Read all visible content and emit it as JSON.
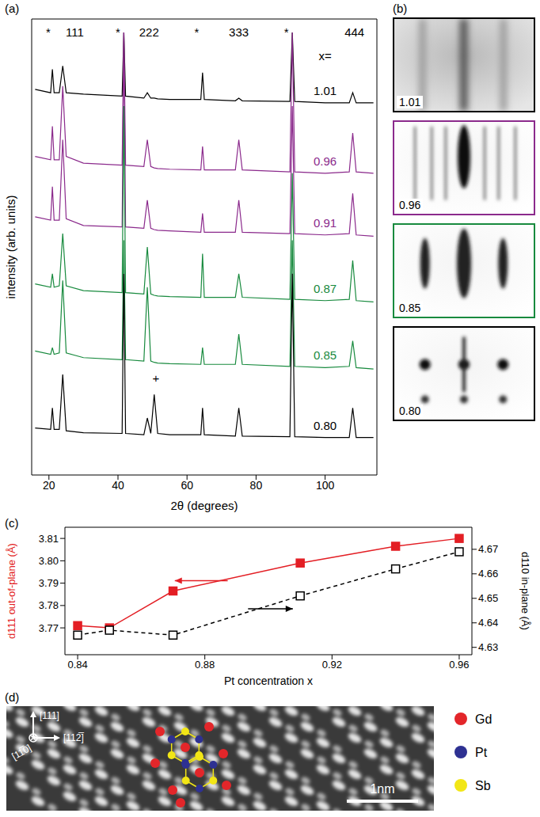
{
  "chart_data": [
    {
      "type": "line",
      "title": "(a)",
      "x_label": "2θ (degrees)",
      "y_label": "intensity (arb. units)",
      "x": [
        16,
        20.5,
        21,
        21.5,
        23,
        24,
        25,
        30,
        41.2,
        41.7,
        42.2,
        47.5,
        48.5,
        49.5,
        50.5,
        51.5,
        55,
        64,
        64.5,
        65,
        74,
        75,
        76,
        89.8,
        90.5,
        91.2,
        100,
        107,
        108,
        109,
        114
      ],
      "series": [
        {
          "name": "1.01",
          "color": "#000000",
          "values": [
            5.75,
            5.7,
            6.05,
            5.7,
            5.7,
            6.1,
            5.7,
            5.68,
            5.65,
            6.6,
            5.65,
            5.62,
            5.7,
            5.62,
            5.62,
            5.61,
            5.6,
            5.6,
            6.0,
            5.6,
            5.58,
            5.62,
            5.58,
            5.57,
            6.6,
            5.57,
            5.55,
            5.55,
            5.7,
            5.55,
            5.55
          ]
        },
        {
          "name": "0.96",
          "color": "#8b2a8c",
          "values": [
            4.75,
            4.7,
            5.2,
            4.7,
            4.7,
            5.8,
            4.75,
            4.65,
            4.62,
            6.6,
            4.62,
            4.6,
            5.0,
            4.6,
            4.58,
            4.57,
            4.56,
            4.55,
            4.9,
            4.55,
            4.55,
            5.0,
            4.55,
            4.52,
            6.6,
            4.52,
            4.5,
            4.52,
            5.1,
            4.52,
            4.5
          ]
        },
        {
          "name": "0.91",
          "color": "#8b2a8c",
          "values": [
            3.85,
            3.8,
            4.3,
            3.8,
            3.8,
            5.0,
            3.82,
            3.72,
            3.7,
            6.6,
            3.7,
            3.68,
            4.1,
            3.68,
            3.66,
            3.65,
            3.64,
            3.62,
            3.9,
            3.62,
            3.62,
            4.1,
            3.62,
            3.6,
            5.5,
            3.6,
            3.58,
            3.6,
            4.2,
            3.58,
            3.56
          ]
        },
        {
          "name": "0.87",
          "color": "#188a3e",
          "values": [
            2.85,
            2.8,
            3.0,
            2.8,
            2.82,
            3.6,
            2.82,
            2.75,
            2.72,
            5.5,
            2.72,
            2.7,
            3.4,
            2.7,
            2.68,
            2.67,
            2.66,
            2.65,
            3.3,
            2.65,
            2.65,
            3.0,
            2.65,
            2.62,
            4.5,
            2.62,
            2.6,
            2.62,
            3.2,
            2.6,
            2.58
          ]
        },
        {
          "name": "0.85",
          "color": "#188a3e",
          "values": [
            1.85,
            1.8,
            1.9,
            1.8,
            1.82,
            2.9,
            1.82,
            1.75,
            1.72,
            3.5,
            1.72,
            1.7,
            2.8,
            1.7,
            1.68,
            1.67,
            1.66,
            1.65,
            1.9,
            1.65,
            1.65,
            2.1,
            1.65,
            1.62,
            3.5,
            1.62,
            1.6,
            1.62,
            2.0,
            1.6,
            1.58
          ]
        },
        {
          "name": "0.80",
          "color": "#000000",
          "values": [
            0.7,
            0.68,
            1.0,
            0.68,
            0.68,
            1.5,
            0.66,
            0.63,
            0.62,
            3.0,
            0.62,
            0.6,
            0.85,
            0.62,
            1.2,
            0.62,
            0.6,
            0.6,
            1.0,
            0.6,
            0.58,
            1.0,
            0.58,
            0.57,
            3.0,
            0.57,
            0.56,
            0.56,
            1.0,
            0.56,
            0.56
          ]
        }
      ],
      "xlim": [
        15,
        115
      ],
      "xticks": [
        20,
        40,
        60,
        80,
        100
      ],
      "ylim": [
        0,
        6.8
      ],
      "tick_labels": "x",
      "annotations": [
        {
          "text": "*",
          "x": 19.8,
          "y": 6.6
        },
        {
          "text": "111",
          "x": 27.5,
          "y": 6.6
        },
        {
          "text": "*",
          "x": 40,
          "y": 6.6
        },
        {
          "text": "222",
          "x": 49,
          "y": 6.6
        },
        {
          "text": "*",
          "x": 62.8,
          "y": 6.6
        },
        {
          "text": "333",
          "x": 75,
          "y": 6.6
        },
        {
          "text": "*",
          "x": 88.8,
          "y": 6.6
        },
        {
          "text": "444",
          "x": 108.5,
          "y": 6.6
        },
        {
          "text": "x=",
          "x": 100,
          "y": 6.25
        },
        {
          "text": "+",
          "x": 51,
          "y": 1.45
        }
      ]
    },
    {
      "type": "line",
      "title": "(c)",
      "x_label": "Pt concentration x",
      "y_label": "d111 out-of-plane (Å)",
      "y2_label": "d110 in-plane (Å)",
      "x": [
        0.84,
        0.85,
        0.87,
        0.91,
        0.94,
        0.96
      ],
      "series": [
        {
          "color": "#e31e24",
          "marker": "square",
          "line_style": "solid",
          "axis": "y",
          "values": [
            3.771,
            3.77,
            3.7865,
            3.799,
            3.8065,
            3.81
          ]
        },
        {
          "color": "#000000",
          "marker": "open_square",
          "line_style": "dashed",
          "axis": "y2",
          "values": [
            4.635,
            4.637,
            4.635,
            4.651,
            4.662,
            4.669
          ]
        }
      ],
      "xlim": [
        0.836,
        0.964
      ],
      "xticks": [
        0.84,
        0.88,
        0.92,
        0.96
      ],
      "ylim": [
        3.758,
        3.815
      ],
      "yticks": [
        3.77,
        3.78,
        3.79,
        {
          "value": 3.8,
          "label": "3.80"
        },
        3.81
      ],
      "y2lim": [
        4.627,
        4.679
      ],
      "y2ticks": [
        4.63,
        4.64,
        4.65,
        4.66,
        4.67
      ]
    }
  ],
  "rheed": {
    "title": "(b)",
    "images": [
      {
        "label": "1.01",
        "color": "#000000"
      },
      {
        "label": "0.96",
        "color": "#8b2a8c"
      },
      {
        "label": "0.85",
        "color": "#188a3e"
      },
      {
        "label": "0.80",
        "color": "#000000"
      }
    ]
  },
  "stem": {
    "title": "(d)",
    "directions": {
      "up": "[111]",
      "right": "[112̅]",
      "into": "[11̅0]"
    },
    "atoms": [
      {
        "name": "Gd",
        "color": "#e3262a"
      },
      {
        "name": "Pt",
        "color": "#2e3192"
      },
      {
        "name": "Sb",
        "color": "#f2e616"
      }
    ],
    "scale_bar": "1nm"
  }
}
